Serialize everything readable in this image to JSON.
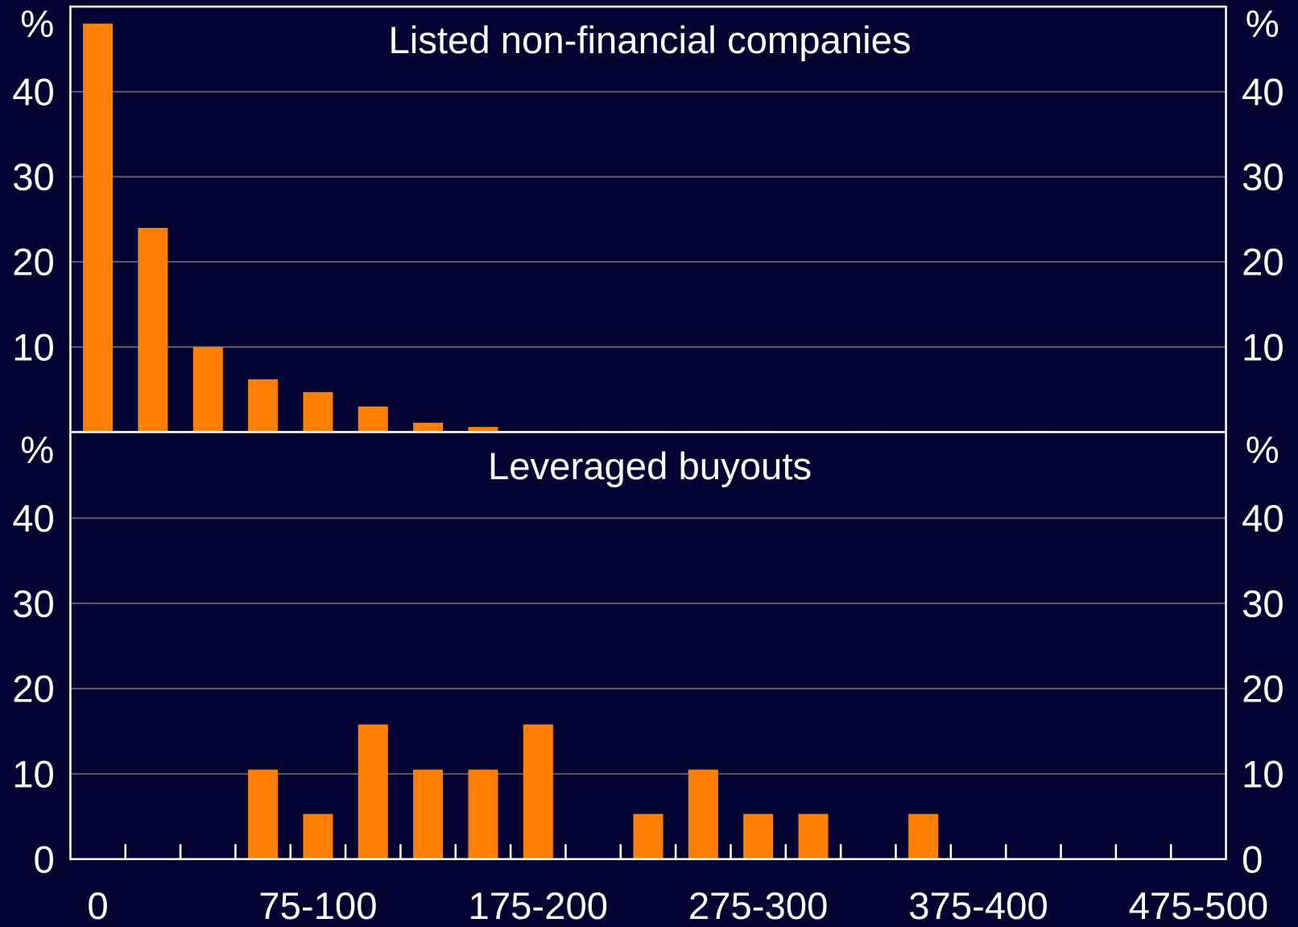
{
  "chart_data": [
    {
      "type": "bar",
      "title": "Listed non-financial companies",
      "y_label": "%",
      "values": [
        48,
        24,
        10,
        6.2,
        4.7,
        3,
        1.1,
        0.6,
        0.1,
        0.1,
        0.1,
        0.1,
        0.1,
        0,
        0.1,
        0,
        0,
        0.1,
        0,
        0,
        0
      ],
      "color": "#ff8000",
      "ylim": [
        0,
        50
      ],
      "yticks": [
        10,
        20,
        30,
        40
      ],
      "grid": true
    },
    {
      "type": "bar",
      "title": "Leveraged buyouts",
      "y_label": "%",
      "categories": [
        "0",
        null,
        null,
        null,
        "75-100",
        null,
        null,
        null,
        "175-200",
        null,
        null,
        null,
        "275-300",
        null,
        null,
        null,
        "375-400",
        null,
        null,
        null,
        "475-500"
      ],
      "values": [
        0,
        0,
        0,
        10.5,
        5.3,
        15.8,
        10.5,
        10.5,
        15.8,
        0,
        5.3,
        10.5,
        5.3,
        5.3,
        0,
        5.3,
        0,
        0,
        0,
        0,
        0
      ],
      "color": "#ff8000",
      "ylim": [
        0,
        50
      ],
      "yticks": [
        0,
        10,
        20,
        30,
        40
      ],
      "grid": true
    }
  ]
}
